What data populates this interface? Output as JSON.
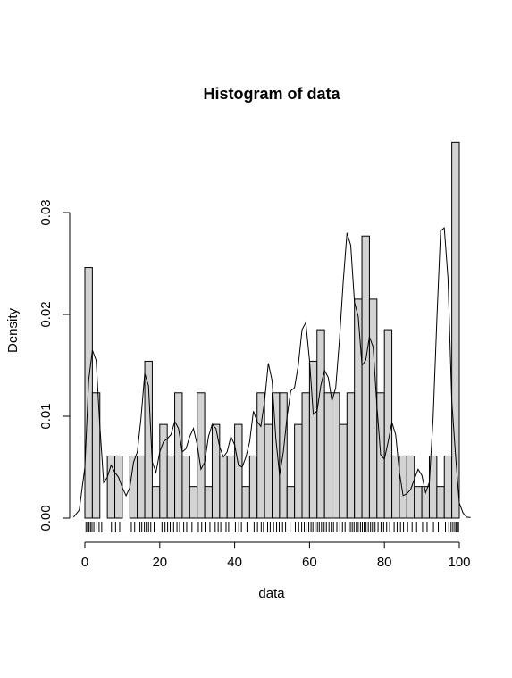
{
  "chart_data": {
    "type": "bar",
    "title": "Histogram of data",
    "xlabel": "data",
    "ylabel": "Density",
    "xlim": [
      -4,
      104
    ],
    "ylim": [
      0,
      0.037
    ],
    "bin_width": 2,
    "bin_start": 0,
    "x_ticks": [
      0,
      20,
      40,
      60,
      80,
      100
    ],
    "y_ticks": [
      0.0,
      0.01,
      0.02,
      0.03
    ],
    "y_tick_labels": [
      "0.00",
      "0.01",
      "0.02",
      "0.03"
    ],
    "x_tick_labels": [
      "0",
      "20",
      "40",
      "60",
      "80",
      "100"
    ],
    "values": [
      0.0246,
      0.0123,
      0.0,
      0.0061,
      0.0061,
      0.0,
      0.0061,
      0.0061,
      0.0154,
      0.0031,
      0.0092,
      0.0061,
      0.0123,
      0.0061,
      0.0031,
      0.0123,
      0.0031,
      0.0092,
      0.0061,
      0.0061,
      0.0092,
      0.0031,
      0.0061,
      0.0123,
      0.0092,
      0.0123,
      0.0123,
      0.0031,
      0.0092,
      0.0123,
      0.0154,
      0.0185,
      0.0123,
      0.0123,
      0.0092,
      0.0123,
      0.0215,
      0.0277,
      0.0215,
      0.0123,
      0.0185,
      0.0061,
      0.0061,
      0.0061,
      0.0031,
      0.0031,
      0.0061,
      0.0031,
      0.0061,
      0.0369
    ],
    "density_curve": {
      "x": [
        -3,
        -1.5,
        0,
        1,
        2,
        3,
        4,
        5,
        6,
        7,
        8,
        9,
        10,
        11,
        12,
        13,
        14,
        15,
        16,
        17,
        18,
        19,
        20,
        21,
        22,
        23,
        24,
        25,
        26,
        27,
        28,
        29,
        30,
        31,
        32,
        33,
        34,
        35,
        36,
        37,
        38,
        39,
        40,
        41,
        42,
        43,
        44,
        45,
        46,
        47,
        48,
        49,
        50,
        51,
        52,
        53,
        54,
        55,
        56,
        57,
        58,
        59,
        60,
        61,
        62,
        63,
        64,
        65,
        66,
        67,
        68,
        69,
        70,
        71,
        72,
        73,
        74,
        75,
        76,
        77,
        78,
        79,
        80,
        81,
        82,
        83,
        84,
        85,
        86,
        87,
        88,
        89,
        90,
        91,
        92,
        93,
        94,
        95,
        96,
        97,
        98,
        99,
        100,
        101,
        102,
        103
      ],
      "y": [
        0.0001,
        0.0008,
        0.005,
        0.0135,
        0.0165,
        0.0155,
        0.009,
        0.0035,
        0.004,
        0.0052,
        0.0045,
        0.004,
        0.003,
        0.0022,
        0.003,
        0.0055,
        0.0065,
        0.0098,
        0.0142,
        0.013,
        0.0055,
        0.0045,
        0.0065,
        0.0075,
        0.0078,
        0.0082,
        0.0095,
        0.0088,
        0.0065,
        0.0068,
        0.008,
        0.0088,
        0.0072,
        0.0048,
        0.0055,
        0.008,
        0.0092,
        0.0088,
        0.007,
        0.006,
        0.0065,
        0.008,
        0.0072,
        0.0052,
        0.005,
        0.006,
        0.0075,
        0.0105,
        0.0095,
        0.009,
        0.0115,
        0.0152,
        0.0135,
        0.0078,
        0.0042,
        0.0065,
        0.01,
        0.0125,
        0.0128,
        0.015,
        0.0185,
        0.0192,
        0.0155,
        0.0102,
        0.0105,
        0.013,
        0.0145,
        0.0138,
        0.0115,
        0.0128,
        0.0175,
        0.0232,
        0.028,
        0.0268,
        0.0212,
        0.0198,
        0.015,
        0.0155,
        0.0178,
        0.0168,
        0.011,
        0.0062,
        0.0058,
        0.0075,
        0.0094,
        0.0082,
        0.0045,
        0.0022,
        0.0024,
        0.0028,
        0.0038,
        0.0048,
        0.0042,
        0.0025,
        0.0035,
        0.0098,
        0.0195,
        0.0282,
        0.0285,
        0.0235,
        0.0115,
        0.0062,
        0.0015,
        0.0005,
        0.0001,
        5e-05
      ]
    },
    "rug": [
      0.3,
      0.7,
      1.1,
      1.5,
      1.9,
      2.4,
      3.2,
      3.8,
      4.5,
      7.1,
      8.2,
      9.3,
      12.4,
      13.3,
      14.7,
      15.2,
      15.9,
      16.4,
      17.0,
      17.6,
      18.5,
      20.6,
      21.4,
      22.1,
      22.8,
      23.7,
      24.6,
      25.3,
      26.4,
      27.2,
      28.6,
      30.3,
      31.2,
      32.1,
      33.4,
      34.8,
      35.6,
      36.3,
      37.7,
      38.4,
      40.2,
      41.1,
      41.8,
      43.3,
      45.2,
      46.1,
      47.1,
      47.7,
      48.8,
      49.5,
      50.4,
      51.2,
      51.9,
      52.8,
      53.6,
      54.8,
      56.2,
      57.1,
      57.9,
      58.6,
      59.1,
      59.8,
      60.4,
      60.9,
      61.5,
      62.1,
      62.6,
      63.2,
      63.9,
      64.5,
      65.2,
      65.8,
      66.4,
      67.3,
      68.1,
      68.8,
      69.5,
      70.3,
      70.9,
      71.4,
      71.9,
      72.5,
      73.0,
      73.6,
      74.1,
      74.6,
      75.1,
      75.7,
      76.3,
      76.8,
      77.5,
      78.3,
      79.1,
      79.8,
      80.6,
      81.4,
      82.6,
      83.4,
      84.3,
      85.1,
      86.2,
      87.4,
      88.6,
      90.2,
      91.4,
      93.1,
      94.4,
      96.3,
      97.2,
      97.8,
      98.3,
      98.8,
      99.2,
      99.5,
      99.8
    ],
    "grid": false,
    "legend": "none"
  }
}
